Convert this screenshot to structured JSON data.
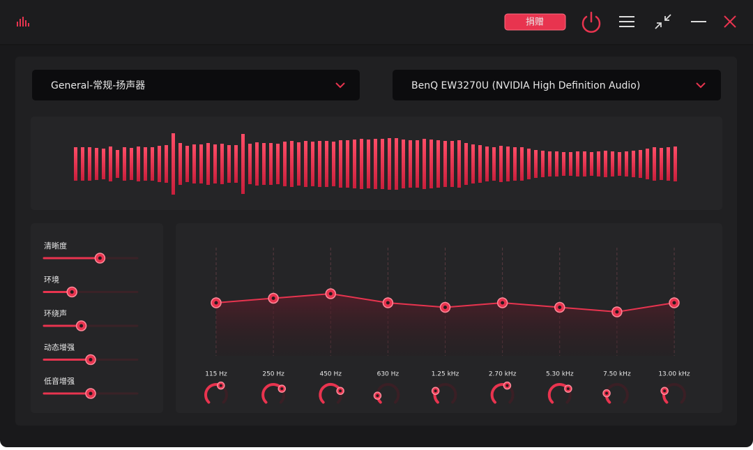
{
  "header": {
    "donate": "捐赠"
  },
  "dropdowns": [
    "General-常规-扬声器",
    "BenQ EW3270U (NVIDIA High Definition Audio)"
  ],
  "waveform": [
    24,
    24,
    24,
    23,
    22,
    25,
    20,
    24,
    23,
    25,
    24,
    24,
    26,
    27,
    44,
    30,
    26,
    28,
    28,
    30,
    28,
    29,
    27,
    27,
    43,
    29,
    31,
    30,
    30,
    29,
    32,
    33,
    31,
    33,
    32,
    33,
    33,
    32,
    34,
    34,
    35,
    36,
    35,
    36,
    36,
    37,
    37,
    35,
    34,
    34,
    36,
    35,
    34,
    33,
    33,
    34,
    30,
    28,
    27,
    25,
    24,
    26,
    25,
    24,
    24,
    22,
    20,
    19,
    18,
    18,
    17,
    17,
    18,
    18,
    17,
    18,
    19,
    18,
    17,
    18,
    19,
    20,
    22,
    24,
    23,
    24,
    25
  ],
  "sliders": [
    {
      "label": "清晰度",
      "value": 60
    },
    {
      "label": "环境",
      "value": 30
    },
    {
      "label": "环绕声",
      "value": 40
    },
    {
      "label": "动态增强",
      "value": 50
    },
    {
      "label": "低音增强",
      "value": 50
    }
  ],
  "equalizer": {
    "bands": [
      "115 Hz",
      "250 Hz",
      "450 Hz",
      "630 Hz",
      "1.25 kHz",
      "2.70 kHz",
      "5.30 kHz",
      "7.50 kHz",
      "13.00 kHz"
    ],
    "gains": [
      0,
      1,
      2,
      0,
      -1,
      0,
      -1,
      -2,
      0
    ],
    "knobs": [
      60,
      70,
      75,
      15,
      25,
      60,
      70,
      20,
      25
    ]
  }
}
